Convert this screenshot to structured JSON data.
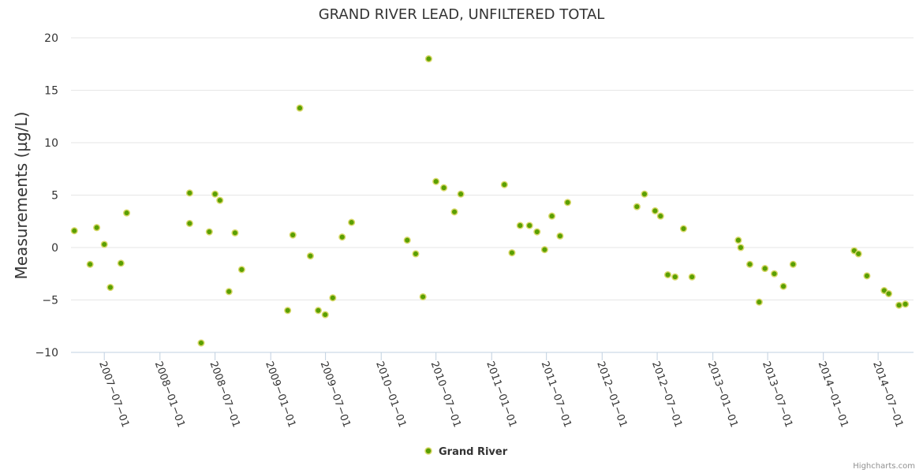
{
  "chart_data": {
    "type": "scatter",
    "title": "GRAND RIVER LEAD, UNFILTERED TOTAL",
    "ylabel": "Measurements (µg/L)",
    "ylim": [
      -10,
      20
    ],
    "y_ticks": [
      "20",
      "15",
      "10",
      "5",
      "0",
      "−5",
      "−10"
    ],
    "x_ticks": [
      "2007−07−01",
      "2008−01−01",
      "2008−07−01",
      "2009−01−01",
      "2009−07−01",
      "2010−01−01",
      "2010−07−01",
      "2011−01−01",
      "2011−07−01",
      "2012−01−01",
      "2012−07−01",
      "2013−01−01",
      "2013−07−01",
      "2014−01−01",
      "2014−07−01"
    ],
    "xlim": [
      "2007-03-13",
      "2014-10-26"
    ],
    "grid": "horizontal",
    "legend_position": "bottom-center",
    "credits": "Highcharts.com",
    "series": [
      {
        "name": "Grand River",
        "color": "#5a9f00",
        "points": [
          {
            "x": "2007-03-24",
            "y": 1.6
          },
          {
            "x": "2007-05-15",
            "y": -1.6
          },
          {
            "x": "2007-06-06",
            "y": 1.9
          },
          {
            "x": "2007-07-01",
            "y": 0.3
          },
          {
            "x": "2007-07-21",
            "y": -3.8
          },
          {
            "x": "2007-08-25",
            "y": -1.5
          },
          {
            "x": "2007-09-13",
            "y": 3.3
          },
          {
            "x": "2008-04-08",
            "y": 5.2
          },
          {
            "x": "2008-04-08",
            "y": 2.3
          },
          {
            "x": "2008-05-16",
            "y": -9.1
          },
          {
            "x": "2008-06-12",
            "y": 1.5
          },
          {
            "x": "2008-07-01",
            "y": 5.1
          },
          {
            "x": "2008-07-17",
            "y": 4.5
          },
          {
            "x": "2008-08-16",
            "y": -4.2
          },
          {
            "x": "2008-09-05",
            "y": 1.4
          },
          {
            "x": "2008-09-27",
            "y": -2.1
          },
          {
            "x": "2009-02-26",
            "y": -6.0
          },
          {
            "x": "2009-03-15",
            "y": 1.2
          },
          {
            "x": "2009-04-07",
            "y": 13.3
          },
          {
            "x": "2009-05-12",
            "y": -0.8
          },
          {
            "x": "2009-06-07",
            "y": -6.0
          },
          {
            "x": "2009-06-30",
            "y": -6.4
          },
          {
            "x": "2009-07-25",
            "y": -4.8
          },
          {
            "x": "2009-08-25",
            "y": 1.0
          },
          {
            "x": "2009-09-25",
            "y": 2.4
          },
          {
            "x": "2010-03-28",
            "y": 0.7
          },
          {
            "x": "2010-04-25",
            "y": -0.6
          },
          {
            "x": "2010-05-19",
            "y": -4.7
          },
          {
            "x": "2010-06-07",
            "y": 18.0
          },
          {
            "x": "2010-07-01",
            "y": 6.3
          },
          {
            "x": "2010-07-27",
            "y": 5.7
          },
          {
            "x": "2010-08-31",
            "y": 3.4
          },
          {
            "x": "2010-09-21",
            "y": 5.1
          },
          {
            "x": "2011-02-12",
            "y": 6.0
          },
          {
            "x": "2011-03-09",
            "y": -0.5
          },
          {
            "x": "2011-04-05",
            "y": 2.1
          },
          {
            "x": "2011-05-06",
            "y": 2.1
          },
          {
            "x": "2011-05-31",
            "y": 1.5
          },
          {
            "x": "2011-06-25",
            "y": -0.2
          },
          {
            "x": "2011-07-19",
            "y": 3.0
          },
          {
            "x": "2011-08-15",
            "y": 1.1
          },
          {
            "x": "2011-09-09",
            "y": 4.3
          },
          {
            "x": "2012-04-25",
            "y": 3.9
          },
          {
            "x": "2012-05-20",
            "y": 5.1
          },
          {
            "x": "2012-06-24",
            "y": 3.5
          },
          {
            "x": "2012-07-12",
            "y": 3.0
          },
          {
            "x": "2012-08-05",
            "y": -2.6
          },
          {
            "x": "2012-08-29",
            "y": -2.8
          },
          {
            "x": "2012-09-26",
            "y": 1.8
          },
          {
            "x": "2012-10-24",
            "y": -2.8
          },
          {
            "x": "2013-03-26",
            "y": 0.7
          },
          {
            "x": "2013-04-03",
            "y": 0.0
          },
          {
            "x": "2013-05-03",
            "y": -1.6
          },
          {
            "x": "2013-06-03",
            "y": -5.2
          },
          {
            "x": "2013-06-22",
            "y": -2.0
          },
          {
            "x": "2013-07-23",
            "y": -2.5
          },
          {
            "x": "2013-08-22",
            "y": -3.7
          },
          {
            "x": "2013-09-23",
            "y": -1.6
          },
          {
            "x": "2014-04-13",
            "y": -0.3
          },
          {
            "x": "2014-04-27",
            "y": -0.6
          },
          {
            "x": "2014-05-25",
            "y": -2.7
          },
          {
            "x": "2014-07-21",
            "y": -4.1
          },
          {
            "x": "2014-08-05",
            "y": -4.4
          },
          {
            "x": "2014-09-08",
            "y": -5.5
          },
          {
            "x": "2014-09-29",
            "y": -5.4
          }
        ]
      }
    ]
  }
}
